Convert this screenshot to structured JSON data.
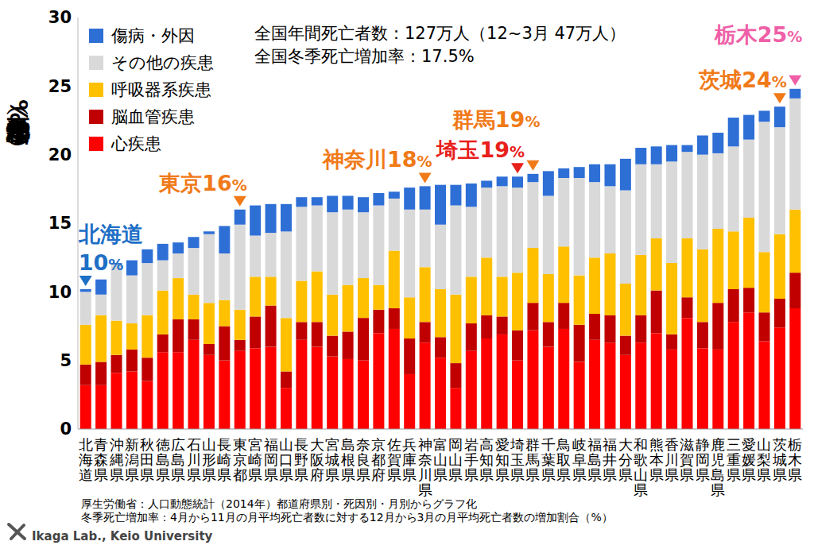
{
  "chart_data": {
    "type": "bar",
    "stacked": true,
    "grid": false,
    "legend": "upper left",
    "y_label": "冬季死亡増加率（%）",
    "info": [
      "全国年間死亡者数：127万人（12~3月 47万人）",
      "全国冬季死亡増加率：17.5%"
    ],
    "categories": [
      "北海道",
      "青森県",
      "沖縄県",
      "新潟県",
      "秋田県",
      "徳島県",
      "広島県",
      "石川県",
      "山形県",
      "長崎県",
      "東京都",
      "宮崎県",
      "福岡県",
      "山口県",
      "長野県",
      "大阪府",
      "宮城県",
      "島根県",
      "奈良県",
      "京都府",
      "佐賀県",
      "兵庫県",
      "神奈川県",
      "富山県",
      "岡山県",
      "岩手県",
      "高知県",
      "愛知県",
      "埼玉県",
      "群馬県",
      "千葉県",
      "鳥取県",
      "岐阜県",
      "福島県",
      "福井県",
      "大分県",
      "和歌山県",
      "熊本県",
      "香川県",
      "滋賀県",
      "静岡県",
      "鹿児島県",
      "三重県",
      "愛媛県",
      "山梨県",
      "茨城県",
      "栃木県"
    ],
    "series": [
      {
        "name": "心疾患",
        "color": "#ff0000",
        "values": [
          3.2,
          3.2,
          4.1,
          4.2,
          3.5,
          5.6,
          5.6,
          6.5,
          5.4,
          5.0,
          5.7,
          5.9,
          6.0,
          3.0,
          6.5,
          6.0,
          5.3,
          5.1,
          5.0,
          7.0,
          7.3,
          4.0,
          6.3,
          5.2,
          3.0,
          5.7,
          6.6,
          6.9,
          5.0,
          7.2,
          6.0,
          7.3,
          4.9,
          6.5,
          6.3,
          5.4,
          6.3,
          7.0,
          5.8,
          8.1,
          5.9,
          5.8,
          7.8,
          8.5,
          6.4,
          7.4,
          8.8
        ]
      },
      {
        "name": "脳血管疾患",
        "color": "#c00000",
        "values": [
          1.5,
          1.7,
          1.3,
          1.6,
          1.7,
          1.3,
          2.4,
          1.5,
          0.8,
          2.5,
          0.8,
          2.3,
          3.0,
          1.2,
          1.3,
          1.8,
          1.5,
          2.0,
          3.1,
          1.7,
          1.5,
          2.6,
          1.5,
          1.5,
          1.8,
          2.0,
          1.7,
          1.3,
          2.2,
          2.0,
          1.8,
          1.9,
          2.7,
          1.9,
          2.0,
          1.4,
          2.0,
          3.1,
          1.1,
          1.5,
          1.9,
          3.4,
          2.4,
          1.8,
          2.1,
          2.1,
          2.6
        ]
      },
      {
        "name": "呼吸器系疾患",
        "color": "#ffc000",
        "values": [
          2.9,
          3.4,
          2.5,
          1.9,
          3.1,
          3.2,
          3.0,
          1.8,
          3.0,
          1.9,
          2.2,
          2.9,
          2.1,
          3.9,
          3.0,
          3.7,
          3.0,
          3.4,
          2.9,
          1.8,
          4.2,
          3.0,
          4.0,
          3.5,
          5.0,
          3.4,
          4.2,
          2.9,
          4.2,
          4.0,
          3.5,
          4.1,
          3.6,
          4.1,
          4.5,
          3.8,
          4.4,
          3.8,
          5.2,
          4.3,
          5.3,
          5.4,
          4.2,
          5.1,
          4.4,
          4.7,
          4.6
        ]
      },
      {
        "name": "その他の疾患",
        "color": "#d9d9d9",
        "values": [
          2.4,
          1.5,
          4.1,
          3.5,
          3.8,
          2.2,
          1.8,
          3.4,
          5.0,
          3.4,
          6.2,
          3.0,
          3.2,
          6.3,
          5.4,
          4.8,
          6.0,
          5.5,
          4.8,
          5.8,
          3.8,
          6.4,
          4.2,
          4.7,
          6.5,
          5.1,
          5.1,
          6.6,
          6.2,
          4.8,
          5.7,
          5.0,
          7.1,
          5.5,
          4.9,
          6.8,
          6.6,
          5.4,
          7.4,
          6.3,
          6.9,
          5.5,
          6.2,
          5.7,
          9.5,
          7.8,
          8.1
        ]
      },
      {
        "name": "傷病・外因",
        "color": "#2e6fd6",
        "values": [
          0.2,
          1.1,
          0.1,
          1.1,
          1.0,
          1.2,
          0.8,
          0.8,
          0.2,
          2.0,
          1.1,
          2.2,
          2.1,
          2.0,
          0.7,
          0.6,
          1.2,
          1.0,
          1.1,
          0.9,
          0.5,
          1.6,
          1.7,
          2.9,
          1.5,
          1.7,
          0.5,
          0.7,
          0.8,
          0.6,
          1.8,
          0.7,
          0.8,
          1.3,
          1.6,
          2.3,
          1.2,
          1.3,
          1.2,
          0.5,
          1.4,
          1.5,
          2.1,
          1.8,
          0.8,
          1.5,
          0.7
        ]
      }
    ],
    "ylim": [
      0,
      30
    ],
    "yticks": [
      0,
      5,
      10,
      15,
      20,
      25,
      30
    ],
    "annotations": [
      {
        "category": "北海道",
        "lines": [
          "北海道",
          "10%"
        ],
        "color": "#1e6fc6"
      },
      {
        "category": "東京都",
        "lines": [
          "東京16%"
        ],
        "color": "#f07a18"
      },
      {
        "category": "神奈川県",
        "lines": [
          "神奈川18%"
        ],
        "color": "#f07a18"
      },
      {
        "category": "埼玉県",
        "lines": [
          "埼玉19%"
        ],
        "color": "#e8201a"
      },
      {
        "category": "群馬県",
        "lines": [
          "群馬19%"
        ],
        "color": "#f07a18"
      },
      {
        "category": "茨城県",
        "lines": [
          "茨城24%"
        ],
        "color": "#f07a18"
      },
      {
        "category": "栃木県",
        "lines": [
          "栃木25%"
        ],
        "color": "#ef5fa7"
      }
    ],
    "notes": [
      "厚生労働省：人口動態統計（2014年）都道府県別・死因別・月別からグラフ化",
      "冬季死亡増加率：4月から11月の月平均死亡者数に対する12月から3月の月平均死亡者数の増加割合（%）"
    ],
    "credit": "Ikaga Lab., Keio University"
  }
}
